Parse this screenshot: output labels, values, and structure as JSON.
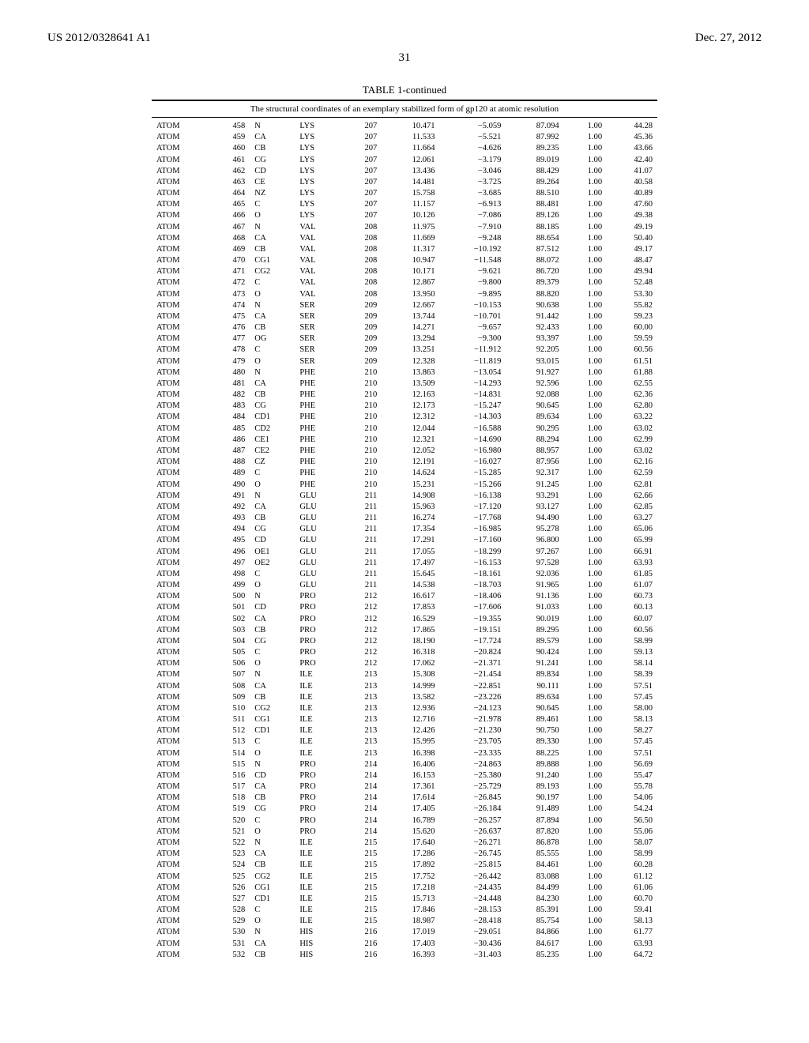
{
  "header": {
    "left": "US 2012/0328641 A1",
    "right": "Dec. 27, 2012"
  },
  "page_number": "31",
  "table": {
    "title": "TABLE 1-continued",
    "caption": "The structural coordinates of an exemplary stabilized form of gp120 at atomic resolution",
    "rows": [
      [
        "ATOM",
        "458",
        "N",
        "LYS",
        "207",
        "10.471",
        "−5.059",
        "87.094",
        "1.00",
        "44.28"
      ],
      [
        "ATOM",
        "459",
        "CA",
        "LYS",
        "207",
        "11.533",
        "−5.521",
        "87.992",
        "1.00",
        "45.36"
      ],
      [
        "ATOM",
        "460",
        "CB",
        "LYS",
        "207",
        "11.664",
        "−4.626",
        "89.235",
        "1.00",
        "43.66"
      ],
      [
        "ATOM",
        "461",
        "CG",
        "LYS",
        "207",
        "12.061",
        "−3.179",
        "89.019",
        "1.00",
        "42.40"
      ],
      [
        "ATOM",
        "462",
        "CD",
        "LYS",
        "207",
        "13.436",
        "−3.046",
        "88.429",
        "1.00",
        "41.07"
      ],
      [
        "ATOM",
        "463",
        "CE",
        "LYS",
        "207",
        "14.481",
        "−3.725",
        "89.264",
        "1.00",
        "40.58"
      ],
      [
        "ATOM",
        "464",
        "NZ",
        "LYS",
        "207",
        "15.758",
        "−3.685",
        "88.510",
        "1.00",
        "40.89"
      ],
      [
        "ATOM",
        "465",
        "C",
        "LYS",
        "207",
        "11.157",
        "−6.913",
        "88.481",
        "1.00",
        "47.60"
      ],
      [
        "ATOM",
        "466",
        "O",
        "LYS",
        "207",
        "10.126",
        "−7.086",
        "89.126",
        "1.00",
        "49.38"
      ],
      [
        "ATOM",
        "467",
        "N",
        "VAL",
        "208",
        "11.975",
        "−7.910",
        "88.185",
        "1.00",
        "49.19"
      ],
      [
        "ATOM",
        "468",
        "CA",
        "VAL",
        "208",
        "11.669",
        "−9.248",
        "88.654",
        "1.00",
        "50.40"
      ],
      [
        "ATOM",
        "469",
        "CB",
        "VAL",
        "208",
        "11.317",
        "−10.192",
        "87.512",
        "1.00",
        "49.17"
      ],
      [
        "ATOM",
        "470",
        "CG1",
        "VAL",
        "208",
        "10.947",
        "−11.548",
        "88.072",
        "1.00",
        "48.47"
      ],
      [
        "ATOM",
        "471",
        "CG2",
        "VAL",
        "208",
        "10.171",
        "−9.621",
        "86.720",
        "1.00",
        "49.94"
      ],
      [
        "ATOM",
        "472",
        "C",
        "VAL",
        "208",
        "12.867",
        "−9.800",
        "89.379",
        "1.00",
        "52.48"
      ],
      [
        "ATOM",
        "473",
        "O",
        "VAL",
        "208",
        "13.950",
        "−9.895",
        "88.820",
        "1.00",
        "53.30"
      ],
      [
        "ATOM",
        "474",
        "N",
        "SER",
        "209",
        "12.667",
        "−10.153",
        "90.638",
        "1.00",
        "55.82"
      ],
      [
        "ATOM",
        "475",
        "CA",
        "SER",
        "209",
        "13.744",
        "−10.701",
        "91.442",
        "1.00",
        "59.23"
      ],
      [
        "ATOM",
        "476",
        "CB",
        "SER",
        "209",
        "14.271",
        "−9.657",
        "92.433",
        "1.00",
        "60.00"
      ],
      [
        "ATOM",
        "477",
        "OG",
        "SER",
        "209",
        "13.294",
        "−9.300",
        "93.397",
        "1.00",
        "59.59"
      ],
      [
        "ATOM",
        "478",
        "C",
        "SER",
        "209",
        "13.251",
        "−11.912",
        "92.205",
        "1.00",
        "60.56"
      ],
      [
        "ATOM",
        "479",
        "O",
        "SER",
        "209",
        "12.328",
        "−11.819",
        "93.015",
        "1.00",
        "61.51"
      ],
      [
        "ATOM",
        "480",
        "N",
        "PHE",
        "210",
        "13.863",
        "−13.054",
        "91.927",
        "1.00",
        "61.88"
      ],
      [
        "ATOM",
        "481",
        "CA",
        "PHE",
        "210",
        "13.509",
        "−14.293",
        "92.596",
        "1.00",
        "62.55"
      ],
      [
        "ATOM",
        "482",
        "CB",
        "PHE",
        "210",
        "12.163",
        "−14.831",
        "92.088",
        "1.00",
        "62.36"
      ],
      [
        "ATOM",
        "483",
        "CG",
        "PHE",
        "210",
        "12.173",
        "−15.247",
        "90.645",
        "1.00",
        "62.80"
      ],
      [
        "ATOM",
        "484",
        "CD1",
        "PHE",
        "210",
        "12.312",
        "−14.303",
        "89.634",
        "1.00",
        "63.22"
      ],
      [
        "ATOM",
        "485",
        "CD2",
        "PHE",
        "210",
        "12.044",
        "−16.588",
        "90.295",
        "1.00",
        "63.02"
      ],
      [
        "ATOM",
        "486",
        "CE1",
        "PHE",
        "210",
        "12.321",
        "−14.690",
        "88.294",
        "1.00",
        "62.99"
      ],
      [
        "ATOM",
        "487",
        "CE2",
        "PHE",
        "210",
        "12.052",
        "−16.980",
        "88.957",
        "1.00",
        "63.02"
      ],
      [
        "ATOM",
        "488",
        "CZ",
        "PHE",
        "210",
        "12.191",
        "−16.027",
        "87.956",
        "1.00",
        "62.16"
      ],
      [
        "ATOM",
        "489",
        "C",
        "PHE",
        "210",
        "14.624",
        "−15.285",
        "92.317",
        "1.00",
        "62.59"
      ],
      [
        "ATOM",
        "490",
        "O",
        "PHE",
        "210",
        "15.231",
        "−15.266",
        "91.245",
        "1.00",
        "62.81"
      ],
      [
        "ATOM",
        "491",
        "N",
        "GLU",
        "211",
        "14.908",
        "−16.138",
        "93.291",
        "1.00",
        "62.66"
      ],
      [
        "ATOM",
        "492",
        "CA",
        "GLU",
        "211",
        "15.963",
        "−17.120",
        "93.127",
        "1.00",
        "62.85"
      ],
      [
        "ATOM",
        "493",
        "CB",
        "GLU",
        "211",
        "16.274",
        "−17.768",
        "94.490",
        "1.00",
        "63.27"
      ],
      [
        "ATOM",
        "494",
        "CG",
        "GLU",
        "211",
        "17.354",
        "−16.985",
        "95.278",
        "1.00",
        "65.06"
      ],
      [
        "ATOM",
        "495",
        "CD",
        "GLU",
        "211",
        "17.291",
        "−17.160",
        "96.800",
        "1.00",
        "65.99"
      ],
      [
        "ATOM",
        "496",
        "OE1",
        "GLU",
        "211",
        "17.055",
        "−18.299",
        "97.267",
        "1.00",
        "66.91"
      ],
      [
        "ATOM",
        "497",
        "OE2",
        "GLU",
        "211",
        "17.497",
        "−16.153",
        "97.528",
        "1.00",
        "63.93"
      ],
      [
        "ATOM",
        "498",
        "C",
        "GLU",
        "211",
        "15.645",
        "−18.161",
        "92.036",
        "1.00",
        "61.85"
      ],
      [
        "ATOM",
        "499",
        "O",
        "GLU",
        "211",
        "14.538",
        "−18.703",
        "91.965",
        "1.00",
        "61.07"
      ],
      [
        "ATOM",
        "500",
        "N",
        "PRO",
        "212",
        "16.617",
        "−18.406",
        "91.136",
        "1.00",
        "60.73"
      ],
      [
        "ATOM",
        "501",
        "CD",
        "PRO",
        "212",
        "17.853",
        "−17.606",
        "91.033",
        "1.00",
        "60.13"
      ],
      [
        "ATOM",
        "502",
        "CA",
        "PRO",
        "212",
        "16.529",
        "−19.355",
        "90.019",
        "1.00",
        "60.07"
      ],
      [
        "ATOM",
        "503",
        "CB",
        "PRO",
        "212",
        "17.865",
        "−19.151",
        "89.295",
        "1.00",
        "60.56"
      ],
      [
        "ATOM",
        "504",
        "CG",
        "PRO",
        "212",
        "18.190",
        "−17.724",
        "89.579",
        "1.00",
        "58.99"
      ],
      [
        "ATOM",
        "505",
        "C",
        "PRO",
        "212",
        "16.318",
        "−20.824",
        "90.424",
        "1.00",
        "59.13"
      ],
      [
        "ATOM",
        "506",
        "O",
        "PRO",
        "212",
        "17.062",
        "−21.371",
        "91.241",
        "1.00",
        "58.14"
      ],
      [
        "ATOM",
        "507",
        "N",
        "ILE",
        "213",
        "15.308",
        "−21.454",
        "89.834",
        "1.00",
        "58.39"
      ],
      [
        "ATOM",
        "508",
        "CA",
        "ILE",
        "213",
        "14.999",
        "−22.851",
        "90.111",
        "1.00",
        "57.51"
      ],
      [
        "ATOM",
        "509",
        "CB",
        "ILE",
        "213",
        "13.582",
        "−23.226",
        "89.634",
        "1.00",
        "57.45"
      ],
      [
        "ATOM",
        "510",
        "CG2",
        "ILE",
        "213",
        "12.936",
        "−24.123",
        "90.645",
        "1.00",
        "58.00"
      ],
      [
        "ATOM",
        "511",
        "CG1",
        "ILE",
        "213",
        "12.716",
        "−21.978",
        "89.461",
        "1.00",
        "58.13"
      ],
      [
        "ATOM",
        "512",
        "CD1",
        "ILE",
        "213",
        "12.426",
        "−21.230",
        "90.750",
        "1.00",
        "58.27"
      ],
      [
        "ATOM",
        "513",
        "C",
        "ILE",
        "213",
        "15.995",
        "−23.705",
        "89.330",
        "1.00",
        "57.45"
      ],
      [
        "ATOM",
        "514",
        "O",
        "ILE",
        "213",
        "16.398",
        "−23.335",
        "88.225",
        "1.00",
        "57.51"
      ],
      [
        "ATOM",
        "515",
        "N",
        "PRO",
        "214",
        "16.406",
        "−24.863",
        "89.888",
        "1.00",
        "56.69"
      ],
      [
        "ATOM",
        "516",
        "CD",
        "PRO",
        "214",
        "16.153",
        "−25.380",
        "91.240",
        "1.00",
        "55.47"
      ],
      [
        "ATOM",
        "517",
        "CA",
        "PRO",
        "214",
        "17.361",
        "−25.729",
        "89.193",
        "1.00",
        "55.78"
      ],
      [
        "ATOM",
        "518",
        "CB",
        "PRO",
        "214",
        "17.614",
        "−26.845",
        "90.197",
        "1.00",
        "54.06"
      ],
      [
        "ATOM",
        "519",
        "CG",
        "PRO",
        "214",
        "17.405",
        "−26.184",
        "91.489",
        "1.00",
        "54.24"
      ],
      [
        "ATOM",
        "520",
        "C",
        "PRO",
        "214",
        "16.789",
        "−26.257",
        "87.894",
        "1.00",
        "56.50"
      ],
      [
        "ATOM",
        "521",
        "O",
        "PRO",
        "214",
        "15.620",
        "−26.637",
        "87.820",
        "1.00",
        "55.06"
      ],
      [
        "ATOM",
        "522",
        "N",
        "ILE",
        "215",
        "17.640",
        "−26.271",
        "86.878",
        "1.00",
        "58.07"
      ],
      [
        "ATOM",
        "523",
        "CA",
        "ILE",
        "215",
        "17.286",
        "−26.745",
        "85.555",
        "1.00",
        "58.99"
      ],
      [
        "ATOM",
        "524",
        "CB",
        "ILE",
        "215",
        "17.892",
        "−25.815",
        "84.461",
        "1.00",
        "60.28"
      ],
      [
        "ATOM",
        "525",
        "CG2",
        "ILE",
        "215",
        "17.752",
        "−26.442",
        "83.088",
        "1.00",
        "61.12"
      ],
      [
        "ATOM",
        "526",
        "CG1",
        "ILE",
        "215",
        "17.218",
        "−24.435",
        "84.499",
        "1.00",
        "61.06"
      ],
      [
        "ATOM",
        "527",
        "CD1",
        "ILE",
        "215",
        "15.713",
        "−24.448",
        "84.230",
        "1.00",
        "60.70"
      ],
      [
        "ATOM",
        "528",
        "C",
        "ILE",
        "215",
        "17.846",
        "−28.153",
        "85.391",
        "1.00",
        "59.41"
      ],
      [
        "ATOM",
        "529",
        "O",
        "ILE",
        "215",
        "18.987",
        "−28.418",
        "85.754",
        "1.00",
        "58.13"
      ],
      [
        "ATOM",
        "530",
        "N",
        "HIS",
        "216",
        "17.019",
        "−29.051",
        "84.866",
        "1.00",
        "61.77"
      ],
      [
        "ATOM",
        "531",
        "CA",
        "HIS",
        "216",
        "17.403",
        "−30.436",
        "84.617",
        "1.00",
        "63.93"
      ],
      [
        "ATOM",
        "532",
        "CB",
        "HIS",
        "216",
        "16.393",
        "−31.403",
        "85.235",
        "1.00",
        "64.72"
      ]
    ]
  }
}
